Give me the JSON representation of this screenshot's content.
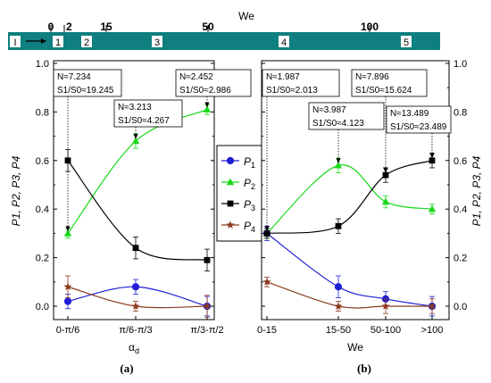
{
  "we_bar": {
    "label": "We",
    "ticks": [
      {
        "value": 0,
        "label": "0"
      },
      {
        "value": 2,
        "label": "2"
      },
      {
        "value": 15,
        "label": "15"
      },
      {
        "value": 50,
        "label": "50"
      },
      {
        "value": 100,
        "label": "100"
      }
    ],
    "segments": [
      "I",
      "1",
      "2",
      "3",
      "4",
      "5"
    ],
    "color": "#0f7f7f"
  },
  "legend": [
    {
      "label": "P1",
      "base": "P",
      "sub": "1",
      "color": "#1f1fd6",
      "marker": "circle"
    },
    {
      "label": "P2",
      "base": "P",
      "sub": "2",
      "color": "#19d819",
      "marker": "triangle"
    },
    {
      "label": "P3",
      "base": "P",
      "sub": "3",
      "color": "#000000",
      "marker": "square"
    },
    {
      "label": "P4",
      "base": "P",
      "sub": "4",
      "color": "#8b3a1f",
      "marker": "star"
    }
  ],
  "chart_data": [
    {
      "type": "line",
      "panel_label": "(a)",
      "categories": [
        "0-π/6",
        "π/6-π/3",
        "π/3-π/2"
      ],
      "xlabel": "α",
      "xlabel_sub": "d",
      "ylabel": "P1, P2, P3, P4",
      "ylim": [
        0,
        1.0
      ],
      "yticks": [
        "0.0",
        "0.2",
        "0.4",
        "0.6",
        "0.8",
        "1.0"
      ],
      "series": [
        {
          "name": "P1",
          "values": [
            0.02,
            0.08,
            0.0
          ],
          "errors": [
            0.03,
            0.03,
            0.04
          ]
        },
        {
          "name": "P2",
          "values": [
            0.3,
            0.68,
            0.81
          ],
          "errors": [
            0.02,
            0.03,
            0.02
          ]
        },
        {
          "name": "P3",
          "values": [
            0.6,
            0.24,
            0.19
          ],
          "errors": [
            0.045,
            0.045,
            0.045
          ]
        },
        {
          "name": "P4",
          "values": [
            0.08,
            0.0,
            0.0
          ],
          "errors": [
            0.045,
            0.02,
            0.045
          ]
        }
      ],
      "annotations": [
        {
          "category_index": 0,
          "line1": "N≈7.234",
          "line2": "S1/S0≈19.245",
          "target": 0.3
        },
        {
          "category_index": 1,
          "line1": "N≈3.213",
          "line2": "S1/S0≈4.267",
          "target": 0.68
        },
        {
          "category_index": 2,
          "line1": "N≈2.452",
          "line2": "S1/S0≈2.986",
          "target": 0.81
        }
      ]
    },
    {
      "type": "line",
      "panel_label": "(b)",
      "categories": [
        "0-15",
        "15-50",
        "50-100",
        ">100"
      ],
      "xlabel": "We",
      "ylabel": "P1, P2, P3, P4",
      "ylim": [
        0,
        1.0
      ],
      "yticks": [
        "0.0",
        "0.2",
        "0.4",
        "0.6",
        "0.8",
        "1.0"
      ],
      "series": [
        {
          "name": "P1",
          "values": [
            0.3,
            0.08,
            0.03,
            0.0
          ],
          "errors": [
            0.03,
            0.045,
            0.03,
            0.04
          ]
        },
        {
          "name": "P2",
          "values": [
            0.3,
            0.58,
            0.43,
            0.4
          ],
          "errors": [
            0.02,
            0.03,
            0.025,
            0.02
          ]
        },
        {
          "name": "P3",
          "values": [
            0.3,
            0.33,
            0.54,
            0.6
          ],
          "errors": [
            0.02,
            0.03,
            0.03,
            0.03
          ]
        },
        {
          "name": "P4",
          "values": [
            0.1,
            0.0,
            0.0,
            0.0
          ],
          "errors": [
            0.02,
            0.02,
            0.03,
            0.03
          ]
        }
      ],
      "annotations": [
        {
          "category_index": 0,
          "line1": "N≈1.987",
          "line2": "S1/S0≈2.013",
          "target": 0.3
        },
        {
          "category_index": 1,
          "line1": "N≈3.987",
          "line2": "S1/S0≈4.123",
          "target": 0.58
        },
        {
          "category_index": 2,
          "line1": "N≈7.896",
          "line2": "S1/S0≈15.624",
          "target": 0.54
        },
        {
          "category_index": 3,
          "line1": "N≈13.489",
          "line2": "S1/S0≈23.489",
          "target": 0.6
        }
      ]
    }
  ]
}
